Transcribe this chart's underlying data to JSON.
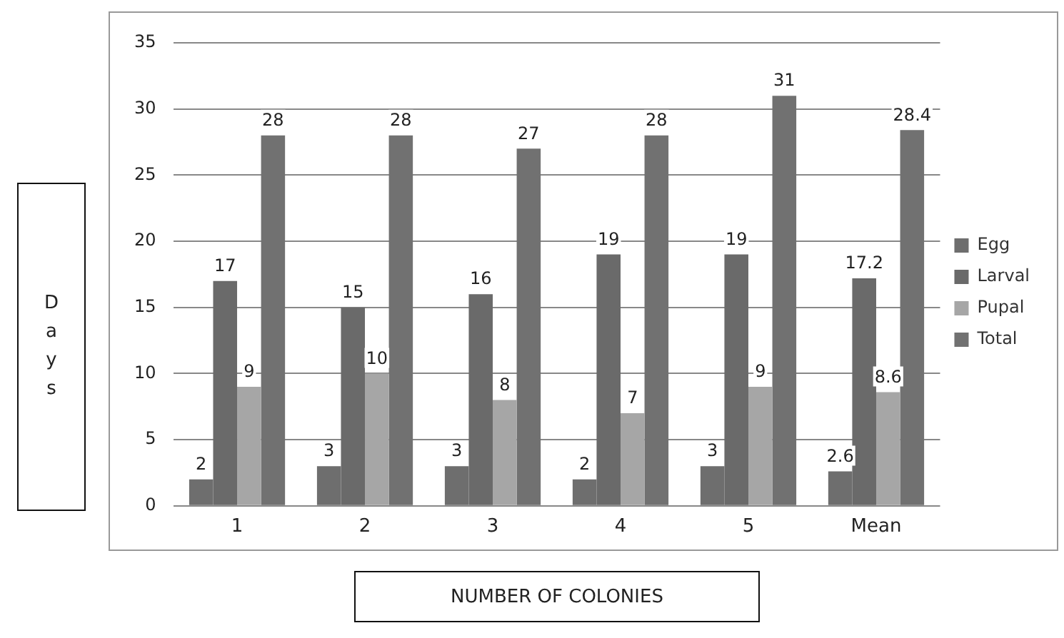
{
  "chart_data": {
    "type": "bar",
    "xlabel": "NUMBER OF COLONIES",
    "ylabel": "Days",
    "categories": [
      "1",
      "2",
      "3",
      "4",
      "5",
      "Mean"
    ],
    "series": [
      {
        "name": "Egg",
        "color": "#6e6e6e",
        "values": [
          2,
          3,
          3,
          2,
          3,
          2.6
        ]
      },
      {
        "name": "Larval",
        "color": "#6a6a6a",
        "values": [
          17,
          15,
          16,
          19,
          19,
          17.2
        ]
      },
      {
        "name": "Pupal",
        "color": "#a6a6a6",
        "values": [
          9,
          10,
          8,
          7,
          9,
          8.6
        ]
      },
      {
        "name": "Total",
        "color": "#717171",
        "values": [
          28,
          28,
          27,
          28,
          31,
          28.4
        ]
      }
    ],
    "ylim": [
      0,
      35
    ],
    "yticks": [
      0,
      5,
      10,
      15,
      20,
      25,
      30,
      35
    ],
    "grid": "y",
    "legend": "right",
    "data_labels": true
  }
}
